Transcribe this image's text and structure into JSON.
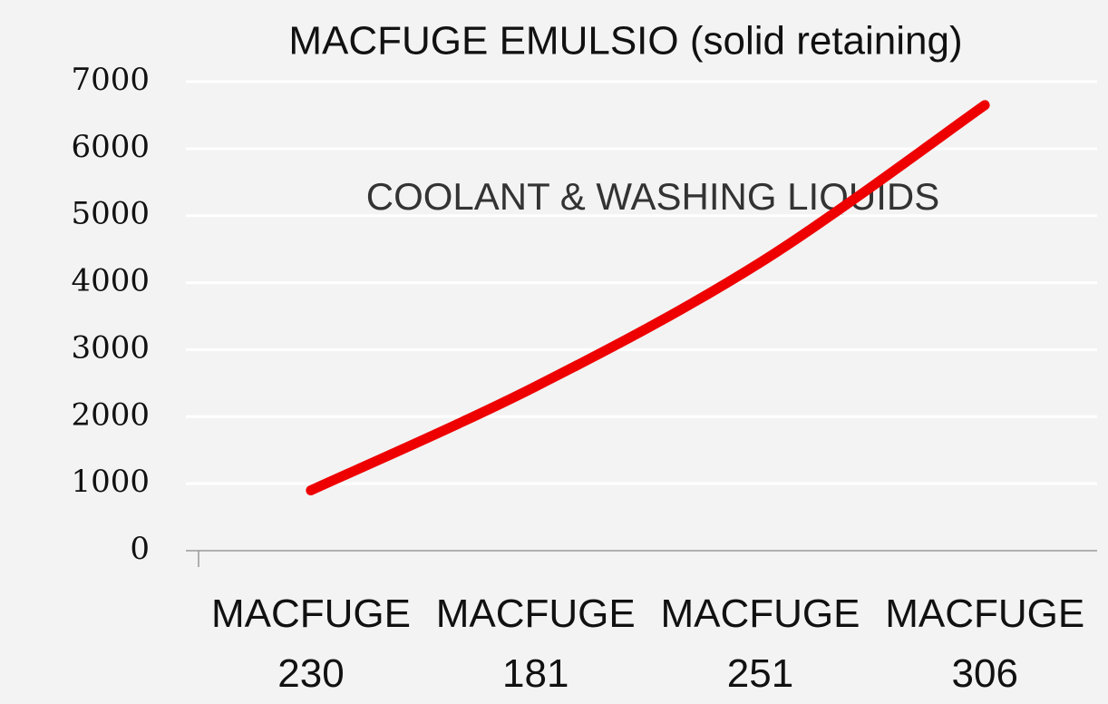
{
  "chart_data": {
    "type": "line",
    "title": "MACFUGE EMULSIO (solid retaining)",
    "annotation": "COOLANT & WASHING LIQUIDS",
    "categories": [
      "MACFUGE\n230",
      "MACFUGE\n181",
      "MACFUGE\n251",
      "MACFUGE\n306"
    ],
    "series": [
      {
        "name": "MACFUGE EMULSIO",
        "color": "#ee0000",
        "values": [
          900,
          2450,
          4300,
          6650
        ]
      }
    ],
    "ylim": [
      0,
      7000
    ],
    "yticks": [
      0,
      1000,
      2000,
      3000,
      4000,
      5000,
      6000,
      7000
    ],
    "grid": true,
    "smooth": true
  }
}
